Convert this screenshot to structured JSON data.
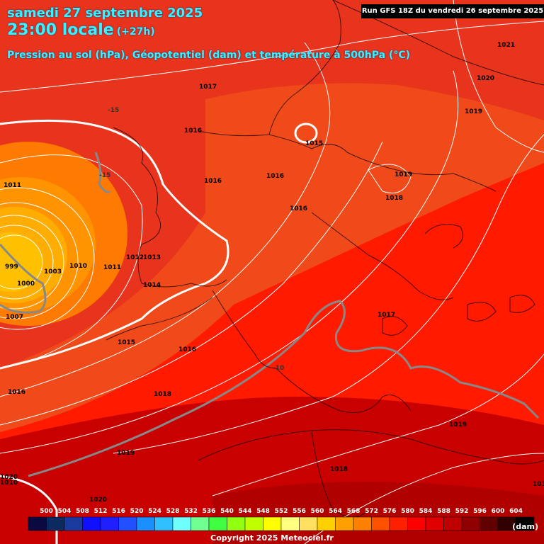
{
  "header": {
    "date_line": "samedi 27 septembre 2025",
    "time_line": "23:00 locale",
    "lead_time": "(+27h)",
    "subtitle": "Pression au sol (hPa), Géopotentiel (dam) et température à 500hPa (°C)",
    "run_info": "Run GFS 18Z du vendredi 26 septembre 2025"
  },
  "footer": {
    "copyright": "Copyright 2025 Meteociel.fr",
    "scale_unit": "(dam)"
  },
  "colors": {
    "outer_bg": "#e8341c",
    "mid_bg": "#f04a1a",
    "inner_bg": "#ff1a00",
    "south_bg": "#c80000",
    "low_core": "#ffb000",
    "isobar": "#ffffff",
    "isotherm": "#888888"
  },
  "scale": {
    "values": [
      "500",
      "504",
      "508",
      "512",
      "516",
      "520",
      "524",
      "528",
      "532",
      "536",
      "540",
      "544",
      "548",
      "552",
      "556",
      "560",
      "564",
      "568",
      "572",
      "576",
      "580",
      "584",
      "588",
      "592",
      "596",
      "600",
      "604"
    ],
    "colors": [
      "#0a0a40",
      "#0c2a60",
      "#1a3aa0",
      "#1010ff",
      "#2020ff",
      "#2050ff",
      "#1a90ff",
      "#30c0ff",
      "#70ffff",
      "#70ff90",
      "#40ff40",
      "#90ff10",
      "#c0ff00",
      "#ffff00",
      "#ffff80",
      "#ffe060",
      "#ffd000",
      "#ffa000",
      "#ff8000",
      "#ff5000",
      "#ff2000",
      "#ff0000",
      "#e00000",
      "#c00000",
      "#900000",
      "#600000",
      "#300000",
      "#000000"
    ]
  },
  "pressure_labels": [
    {
      "text": "1021"
    },
    {
      "text": "1020"
    },
    {
      "text": "1019"
    },
    {
      "text": "1017"
    },
    {
      "text": "1016"
    },
    {
      "text": "1015"
    },
    {
      "text": "1016"
    },
    {
      "text": "1019"
    },
    {
      "text": "1018"
    },
    {
      "text": "1016"
    },
    {
      "text": "1016"
    },
    {
      "text": "1011"
    },
    {
      "text": "1012"
    },
    {
      "text": "1013"
    },
    {
      "text": "1014"
    },
    {
      "text": "1011"
    },
    {
      "text": "1010"
    },
    {
      "text": "1000"
    },
    {
      "text": "1003"
    },
    {
      "text": "999"
    },
    {
      "text": "1007"
    },
    {
      "text": "1015"
    },
    {
      "text": "1016"
    },
    {
      "text": "1017"
    },
    {
      "text": "1016"
    },
    {
      "text": "1018"
    },
    {
      "text": "1019"
    },
    {
      "text": "1019"
    },
    {
      "text": "1018"
    },
    {
      "text": "1020"
    },
    {
      "text": "1019"
    },
    {
      "text": "1020"
    },
    {
      "text": "1010"
    }
  ],
  "temperature_labels": [
    {
      "text": "-15"
    },
    {
      "text": "-15"
    },
    {
      "text": "-10"
    }
  ]
}
